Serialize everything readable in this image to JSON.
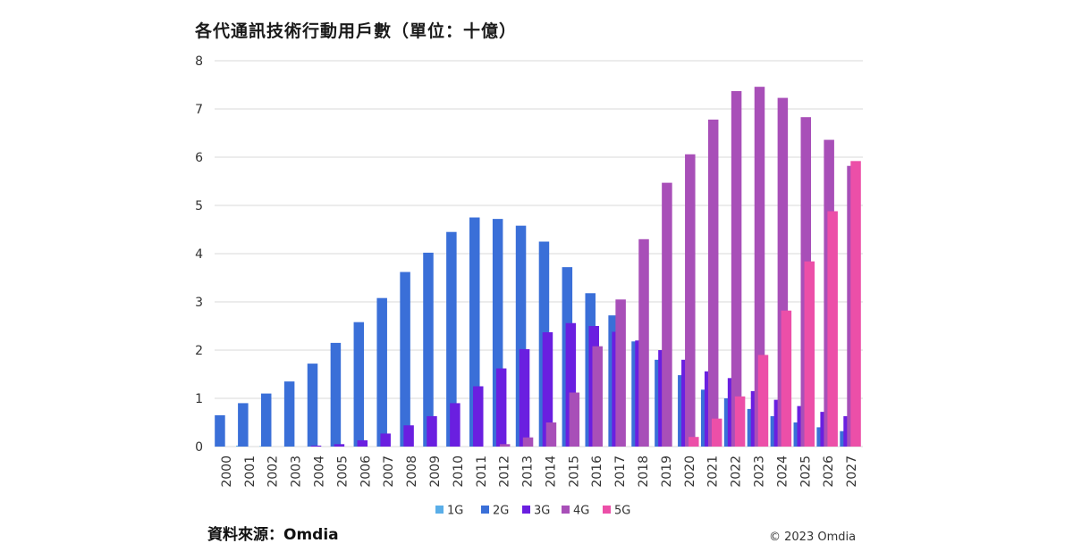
{
  "chart_data": {
    "type": "bar",
    "title": "各代通訊技術行動用戶數（單位：十億）",
    "xlabel": "",
    "ylabel": "",
    "ylim": [
      0,
      8
    ],
    "yticks": [
      0,
      1,
      2,
      3,
      4,
      5,
      6,
      7,
      8
    ],
    "grid": true,
    "legend_position": "bottom",
    "categories": [
      "2000",
      "2001",
      "2002",
      "2003",
      "2004",
      "2005",
      "2006",
      "2007",
      "2008",
      "2009",
      "2010",
      "2011",
      "2012",
      "2013",
      "2014",
      "2015",
      "2016",
      "2017",
      "2018",
      "2019",
      "2020",
      "2021",
      "2022",
      "2023",
      "2024",
      "2025",
      "2026",
      "2027"
    ],
    "series": [
      {
        "name": "1G",
        "color": "#5aaee8",
        "values": [
          0,
          0.02,
          0.01,
          0,
          0,
          0,
          0,
          0,
          0,
          0,
          0,
          0,
          0,
          0,
          0,
          0,
          0,
          0,
          0,
          0,
          0,
          0,
          0,
          0,
          0,
          0,
          0,
          0
        ]
      },
      {
        "name": "2G",
        "color": "#3a6fd8",
        "values": [
          0.65,
          0.9,
          1.1,
          1.35,
          1.72,
          2.15,
          2.58,
          3.08,
          3.62,
          4.02,
          4.45,
          4.75,
          4.72,
          4.58,
          4.25,
          3.72,
          3.18,
          2.72,
          2.18,
          1.8,
          1.48,
          1.18,
          1.0,
          0.78,
          0.63,
          0.5,
          0.4,
          0.32
        ]
      },
      {
        "name": "3G",
        "color": "#6a1fe0",
        "values": [
          0,
          0,
          0,
          0,
          0.02,
          0.05,
          0.13,
          0.27,
          0.44,
          0.63,
          0.9,
          1.25,
          1.62,
          2.02,
          2.37,
          2.56,
          2.5,
          2.38,
          2.2,
          2.0,
          1.8,
          1.56,
          1.42,
          1.15,
          0.97,
          0.84,
          0.72,
          0.63
        ]
      },
      {
        "name": "4G",
        "color": "#a84fb8",
        "values": [
          0,
          0,
          0,
          0,
          0,
          0,
          0,
          0,
          0,
          0,
          0,
          0,
          0.05,
          0.19,
          0.5,
          1.12,
          2.08,
          3.05,
          4.3,
          5.47,
          6.06,
          6.78,
          7.37,
          7.46,
          7.23,
          6.83,
          6.36,
          5.82
        ]
      },
      {
        "name": "5G",
        "color": "#ec4fa8",
        "values": [
          0,
          0,
          0,
          0,
          0,
          0,
          0,
          0,
          0,
          0,
          0,
          0,
          0,
          0,
          0,
          0,
          0,
          0,
          0,
          0,
          0.2,
          0.58,
          1.04,
          1.9,
          2.82,
          3.84,
          4.88,
          5.92
        ]
      }
    ]
  },
  "source_label": "資料來源：Omdia",
  "copyright": "© 2023 Omdia"
}
